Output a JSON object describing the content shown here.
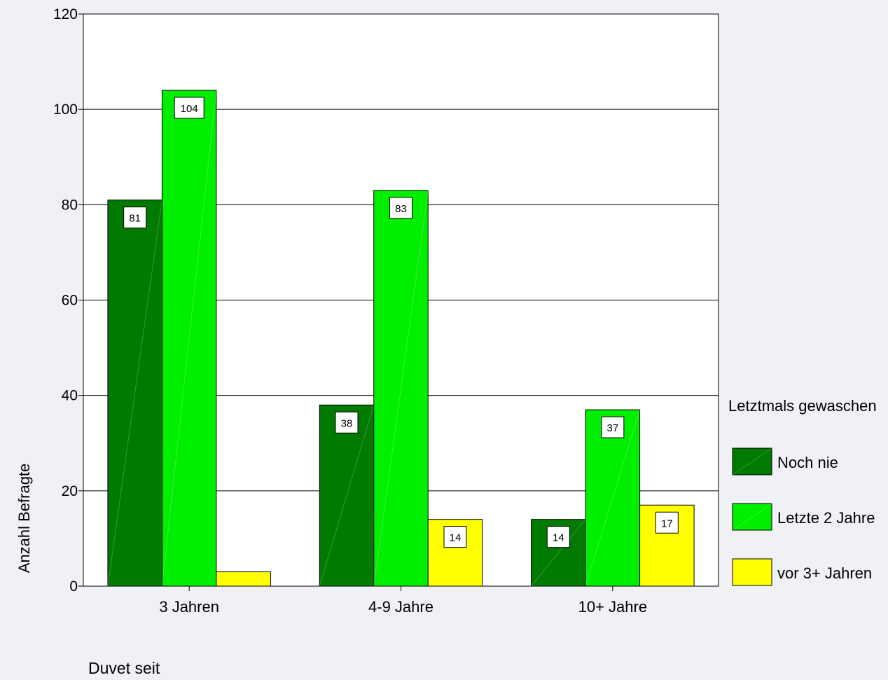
{
  "chart_data": {
    "type": "bar",
    "title": "",
    "xlabel": "Duvet seit",
    "ylabel": "Anzahl Befragte",
    "categories": [
      "3 Jahren",
      "4-9 Jahre",
      "10+ Jahre"
    ],
    "series": [
      {
        "name": "Noch nie",
        "values": [
          81,
          38,
          14
        ],
        "color": "#007a00"
      },
      {
        "name": "Letzte 2 Jahre",
        "values": [
          104,
          83,
          37
        ],
        "color": "#00ee00"
      },
      {
        "name": "vor 3+ Jahren",
        "values": [
          3,
          14,
          17
        ],
        "color": "#ffff00"
      }
    ],
    "data_labels": [
      [
        "81",
        "38",
        "14"
      ],
      [
        "104",
        "83",
        "37"
      ],
      [
        "",
        "14",
        "17"
      ]
    ],
    "ylim": [
      0,
      120
    ],
    "yticks": [
      0,
      20,
      40,
      60,
      80,
      100,
      120
    ],
    "grid": true,
    "legend": {
      "title": "Letztmals gewaschen",
      "placement": "right"
    }
  }
}
